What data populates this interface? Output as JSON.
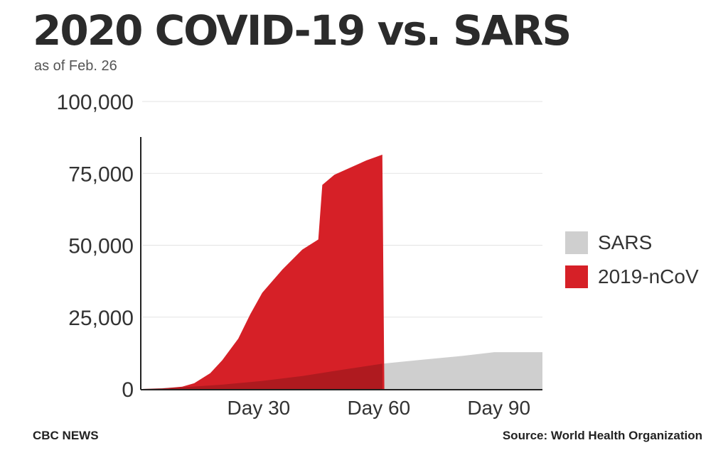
{
  "header": {
    "title": "2020 COVID-19 vs. SARS",
    "subtitle": "as of Feb. 26"
  },
  "footer": {
    "credit": "CBC NEWS",
    "source": "Source: World Health Organization"
  },
  "legend": {
    "items": [
      {
        "label": "SARS",
        "color": "#cfcfcf"
      },
      {
        "label": "2019-nCoV",
        "color": "#d62027"
      }
    ]
  },
  "chart_data": {
    "type": "area",
    "title": "2020 COVID-19 vs. SARS",
    "subtitle": "as of Feb. 26",
    "xlabel": "",
    "ylabel": "",
    "xlim": [
      0,
      100
    ],
    "ylim": [
      0,
      100000
    ],
    "x_ticks": [
      {
        "value": 30,
        "label": "Day 30"
      },
      {
        "value": 60,
        "label": "Day 60"
      },
      {
        "value": 90,
        "label": "Day 90"
      }
    ],
    "y_ticks": [
      {
        "value": 0,
        "label": "0"
      },
      {
        "value": 25000,
        "label": "25,000"
      },
      {
        "value": 50000,
        "label": "50,000"
      },
      {
        "value": 75000,
        "label": "75,000"
      },
      {
        "value": 100000,
        "label": "100,000"
      }
    ],
    "grid": true,
    "legend_position": "right",
    "series": [
      {
        "name": "SARS",
        "color": "#cfcfcf",
        "x": [
          0,
          10,
          20,
          30,
          40,
          50,
          60,
          70,
          80,
          88,
          100
        ],
        "y": [
          0,
          600,
          1500,
          2800,
          4500,
          6700,
          8800,
          10200,
          11500,
          12800,
          12800
        ]
      },
      {
        "name": "2019-nCoV",
        "color": "#d62027",
        "x": [
          0,
          5,
          10,
          13,
          17,
          20,
          24,
          27,
          30,
          35,
          40,
          44,
          45,
          48,
          52,
          56,
          60,
          60.5
        ],
        "y": [
          0,
          200,
          800,
          2000,
          5500,
          10000,
          17500,
          26000,
          33500,
          41500,
          48500,
          52000,
          71000,
          74500,
          77000,
          79500,
          81500,
          0
        ]
      }
    ]
  }
}
